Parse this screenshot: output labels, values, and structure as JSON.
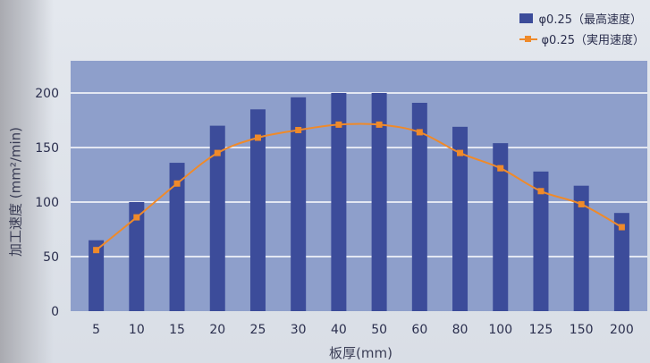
{
  "legend": {
    "bar_label": "φ0.25（最高速度）",
    "line_label": "φ0.25（実用速度）"
  },
  "chart_data": {
    "type": "bar",
    "xlabel": "板厚(mm)",
    "ylabel": "加工速度 (mm²/min)",
    "categories": [
      "5",
      "10",
      "15",
      "20",
      "25",
      "30",
      "40",
      "50",
      "60",
      "80",
      "100",
      "125",
      "150",
      "200"
    ],
    "series": [
      {
        "name": "φ0.25（最高速度）",
        "type": "bar",
        "values": [
          65,
          100,
          136,
          170,
          185,
          196,
          200,
          200,
          191,
          169,
          154,
          128,
          115,
          90
        ]
      },
      {
        "name": "φ0.25（実用速度）",
        "type": "line",
        "values": [
          56,
          86,
          117,
          145,
          159,
          166,
          171,
          171,
          164,
          145,
          131,
          110,
          98,
          77
        ]
      }
    ],
    "ylim": [
      0,
      200
    ],
    "yticks": [
      0,
      50,
      100,
      150,
      200
    ],
    "grid": true,
    "legend_position": "top-right",
    "colors": {
      "bar": "#3c4c9a",
      "line": "#ef8a2a",
      "plot_bg": "#8e9fcb",
      "grid": "#ffffff"
    }
  }
}
